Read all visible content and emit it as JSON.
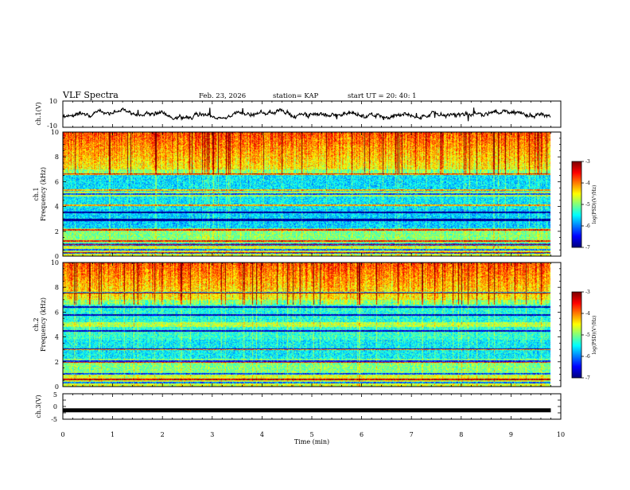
{
  "header": {
    "title": "VLF Spectra",
    "date": "Feb. 23, 2026",
    "station": "station= KAP",
    "start": "start  UT  =   20: 40: 1"
  },
  "chart_data": [
    {
      "type": "line",
      "id": "ch1_voltage",
      "ylabel": "ch.1(V)",
      "ylim": [
        -10,
        10
      ],
      "yticks": [
        "10",
        "-10"
      ],
      "x_range_min": [
        0,
        9.8
      ],
      "description": "noisy time-series fluctuating roughly between -8 and 6 V"
    },
    {
      "type": "heatmap",
      "id": "ch1_spectrogram",
      "ylabel_line1": "ch.1",
      "ylabel_line2": "Frequency (kHz)",
      "ylim": [
        0,
        10
      ],
      "yticks": [
        "0",
        "2",
        "4",
        "6",
        "8",
        "10"
      ],
      "x_range_min": [
        0,
        9.8
      ],
      "colorbar": {
        "label": "log(PSD)(V²/Hz)",
        "min": -7,
        "max": -3,
        "ticks": [
          "-3",
          "-4",
          "-5",
          "-6",
          "-7"
        ]
      }
    },
    {
      "type": "heatmap",
      "id": "ch2_spectrogram",
      "ylabel_line1": "ch.2",
      "ylabel_line2": "Frequency (kHz)",
      "ylim": [
        0,
        10
      ],
      "yticks": [
        "0",
        "2",
        "4",
        "6",
        "8",
        "10"
      ],
      "x_range_min": [
        0,
        9.8
      ],
      "colorbar": {
        "label": "log(PSD)(V²/Hz)",
        "min": -7,
        "max": -3,
        "ticks": [
          "-3",
          "-4",
          "-5",
          "-6",
          "-7"
        ]
      }
    },
    {
      "type": "line",
      "id": "ch3_voltage",
      "ylabel": "ch.3(V)",
      "ylim": [
        -5,
        5
      ],
      "yticks": [
        "5",
        "0",
        "-5"
      ],
      "constant_value": -1.5,
      "x_range_min": [
        0,
        9.8
      ]
    }
  ],
  "xaxis": {
    "label": "Time  (min)",
    "ticks": [
      "0",
      "1",
      "2",
      "3",
      "4",
      "5",
      "6",
      "7",
      "8",
      "9",
      "10"
    ],
    "xlim": [
      0,
      10
    ]
  }
}
